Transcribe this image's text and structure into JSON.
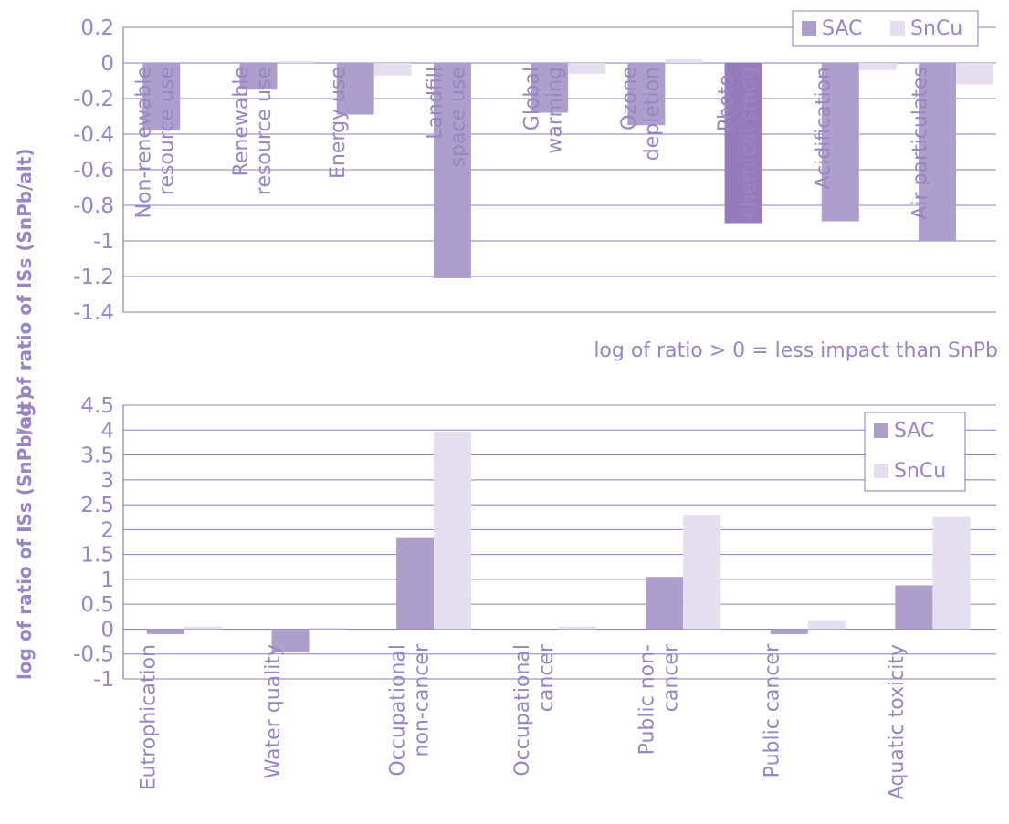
{
  "y_axis_title": "log of ratio of ISs (SnPb/alt)",
  "colors": {
    "sac": "#ad9fcb",
    "sac_highlight": "#957bbb",
    "sncu": "#e4deee",
    "text": "#9a86bf",
    "grid": "#8f7cb8"
  },
  "chart_data": [
    {
      "type": "bar",
      "categories": [
        [
          "Non-renewable",
          "resource use"
        ],
        [
          "Renewable",
          "resource use"
        ],
        [
          "Energy use"
        ],
        [
          "Landfill",
          "space use"
        ],
        [
          "Global",
          "warming"
        ],
        [
          "Ozone",
          "depletion"
        ],
        [
          "Photo-",
          "chemical smog"
        ],
        [
          "Acidification"
        ],
        [
          "Air particulates"
        ]
      ],
      "series": [
        {
          "name": "SAC",
          "values": [
            -0.38,
            -0.15,
            -0.29,
            -1.21,
            -0.28,
            -0.35,
            -0.9,
            -0.89,
            -1.0
          ]
        },
        {
          "name": "SnCu",
          "values": [
            0,
            0.01,
            -0.07,
            0,
            -0.06,
            0.02,
            0,
            -0.04,
            -0.12
          ]
        }
      ],
      "highlight": {
        "series": 0,
        "index": 6
      },
      "ylim": [
        -1.4,
        0.2
      ],
      "yticks": [
        "0.2",
        "0",
        "-0.2",
        "-0.4",
        "-0.6",
        "-0.8",
        "-1",
        "-1.2",
        "-1.4"
      ],
      "ytick_values": [
        0.2,
        0,
        -0.2,
        -0.4,
        -0.6,
        -0.8,
        -1,
        -1.2,
        -1.4
      ],
      "grid": true,
      "legend": "top-right, horizontal",
      "annotation": "log of ratio > 0 = less impact than SnPb"
    },
    {
      "type": "bar",
      "categories": [
        [
          "Eutrophication"
        ],
        [
          "Water quality"
        ],
        [
          "Occupational",
          "non-cancer"
        ],
        [
          "Occupational",
          "cancer"
        ],
        [
          "Public non-",
          "cancer"
        ],
        [
          "Public cancer"
        ],
        [
          "Aquatic toxicity"
        ]
      ],
      "series": [
        {
          "name": "SAC",
          "values": [
            -0.1,
            -0.47,
            1.83,
            0,
            1.05,
            -0.1,
            0.88
          ]
        },
        {
          "name": "SnCu",
          "values": [
            0.05,
            0.03,
            3.97,
            0.05,
            2.3,
            0.18,
            2.25
          ]
        }
      ],
      "ylim": [
        -1,
        4.5
      ],
      "yticks": [
        "4.5",
        "4",
        "3.5",
        "3",
        "2.5",
        "2",
        "1.5",
        "1",
        "0.5",
        "0",
        "-0.5",
        "-1"
      ],
      "ytick_values": [
        4.5,
        4,
        3.5,
        3,
        2.5,
        2,
        1.5,
        1,
        0.5,
        0,
        -0.5,
        -1
      ],
      "grid": true,
      "legend": "top-right, vertical"
    }
  ]
}
